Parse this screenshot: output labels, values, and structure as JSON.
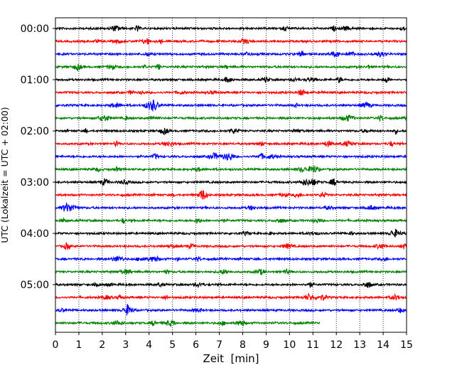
{
  "chart_data": {
    "type": "line",
    "title": "",
    "xlabel": "Zeit  [min]",
    "ylabel": "UTC (Lokalzeit = UTC + 02:00)",
    "xlim": [
      0,
      15
    ],
    "x_ticks": [
      "0",
      "1",
      "2",
      "3",
      "4",
      "5",
      "6",
      "7",
      "8",
      "9",
      "10",
      "11",
      "12",
      "13",
      "14",
      "15"
    ],
    "y_tick_labels": [
      "00:00",
      "01:00",
      "02:00",
      "03:00",
      "04:00",
      "05:00"
    ],
    "grid": "vertical dotted lines at each minute",
    "row_minutes": 15,
    "row_count": 24,
    "last_row_end_minute": 11.3,
    "series_colors": [
      "#000000",
      "#ff0000",
      "#0000ff",
      "#008000"
    ],
    "description": "24 seismogram traces, each 15 minutes long, colours cycling black/red/blue/green per row"
  }
}
